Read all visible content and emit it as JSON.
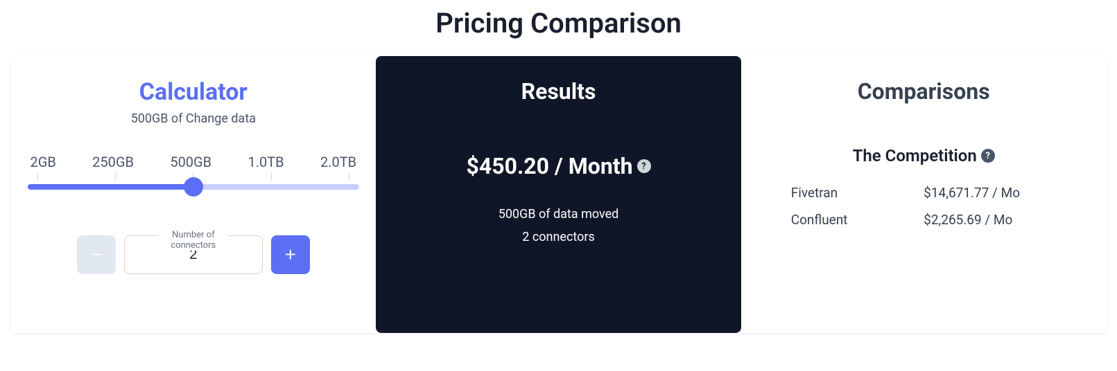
{
  "page": {
    "title": "Pricing Comparison"
  },
  "calculator": {
    "title": "Calculator",
    "subtitle": "500GB of Change data",
    "slider": {
      "labels": [
        "2GB",
        "250GB",
        "500GB",
        "1.0TB",
        "2.0TB"
      ],
      "fill_percent": 50,
      "thumb_percent": 50,
      "track_color": "#c7cefb",
      "fill_color": "#5b6ef5",
      "thumb_color": "#5b6ef5"
    },
    "stepper": {
      "label": "Number of connectors",
      "value": "2",
      "minus_label": "−",
      "plus_label": "+",
      "minus_bg": "#e2e8f0",
      "plus_bg": "#5b6ef5"
    },
    "title_color": "#5b6ef5"
  },
  "results": {
    "title": "Results",
    "price": "$450.20 / Month",
    "data_moved": "500GB of data moved",
    "connectors": "2 connectors",
    "bg_color": "#0f1627"
  },
  "comparisons": {
    "title": "Comparisons",
    "subtitle": "The Competition",
    "rows": [
      {
        "name": "Fivetran",
        "price": "$14,671.77 / Mo"
      },
      {
        "name": "Confluent",
        "price": "$2,265.69 / Mo"
      }
    ]
  }
}
